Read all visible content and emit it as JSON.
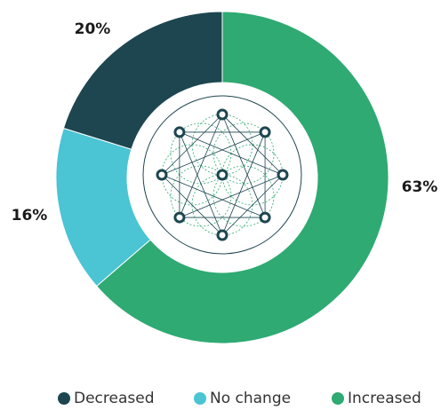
{
  "chart_data": {
    "type": "pie",
    "categories": [
      "Increased",
      "No change",
      "Decreased"
    ],
    "values": [
      63,
      16,
      20
    ],
    "value_labels": [
      "63%",
      "16%",
      "20%"
    ],
    "colors": [
      "#2eaa72",
      "#4bc4d4",
      "#1d4650"
    ],
    "legend": [
      "Decreased",
      "No change",
      "Increased"
    ],
    "legend_colors": [
      "#1d4650",
      "#4bc4d4",
      "#2eaa72"
    ],
    "legend_position": "bottom"
  }
}
